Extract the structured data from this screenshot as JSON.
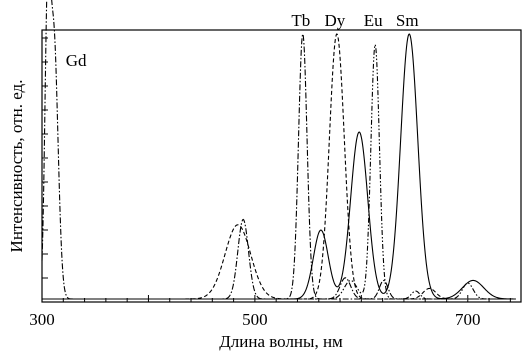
{
  "chart_data": {
    "type": "line",
    "title": "",
    "xlabel": "Длина волны, нм",
    "ylabel": "Интенсивность, отн. ед.",
    "xlim": [
      300,
      750
    ],
    "ylim": [
      0,
      1
    ],
    "x_ticks": [
      300,
      500,
      700
    ],
    "x_tick_labels": [
      "300",
      "500",
      "700"
    ],
    "y_tick_labels": [],
    "grid": false,
    "legend": "labels placed next to peaks",
    "series": [
      {
        "name": "Gd",
        "dash": "dashdot",
        "peaks": [
          {
            "x": 311,
            "y": 1.0,
            "width": 4
          },
          {
            "x": 305,
            "y": 0.9,
            "width": 2.5
          }
        ]
      },
      {
        "name": "Tb",
        "dash": "dashdot",
        "peaks": [
          {
            "x": 489,
            "y": 0.3,
            "width": 5
          },
          {
            "x": 545,
            "y": 1.0,
            "width": 4
          },
          {
            "x": 585,
            "y": 0.08,
            "width": 5
          },
          {
            "x": 621,
            "y": 0.07,
            "width": 4
          }
        ]
      },
      {
        "name": "Dy",
        "dash": "dashed",
        "peaks": [
          {
            "x": 484,
            "y": 0.28,
            "width": 12
          },
          {
            "x": 577,
            "y": 1.0,
            "width": 7
          },
          {
            "x": 664,
            "y": 0.04,
            "width": 6
          }
        ]
      },
      {
        "name": "Eu",
        "dash": "dashdotdot",
        "peaks": [
          {
            "x": 590,
            "y": 0.07,
            "width": 6
          },
          {
            "x": 613,
            "y": 0.96,
            "width": 4
          },
          {
            "x": 651,
            "y": 0.03,
            "width": 4
          },
          {
            "x": 700,
            "y": 0.06,
            "width": 5
          }
        ]
      },
      {
        "name": "Sm",
        "dash": "solid",
        "peaks": [
          {
            "x": 562,
            "y": 0.26,
            "width": 7
          },
          {
            "x": 598,
            "y": 0.63,
            "width": 8
          },
          {
            "x": 645,
            "y": 1.0,
            "width": 8
          },
          {
            "x": 705,
            "y": 0.07,
            "width": 10
          }
        ]
      }
    ]
  }
}
